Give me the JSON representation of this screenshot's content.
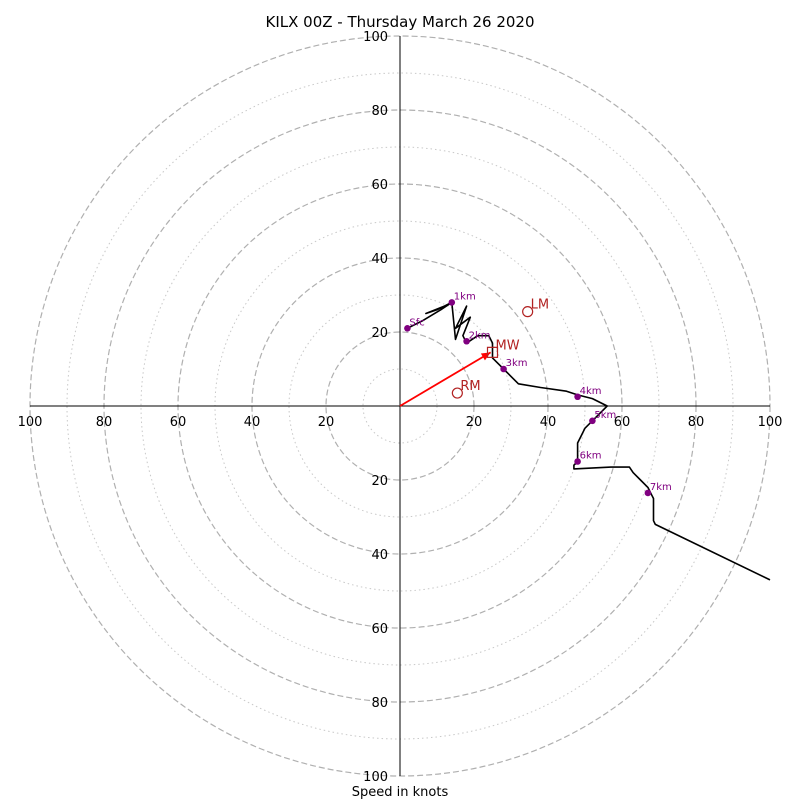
{
  "chart_data": {
    "type": "hodograph",
    "title": "KILX 00Z - Thursday March 26 2020",
    "xlabel": "Speed in knots",
    "range": 100,
    "rings_major": [
      20,
      40,
      60,
      80,
      100
    ],
    "rings_minor": [
      10,
      30,
      50,
      70,
      90
    ],
    "tick_labels": {
      "top": [
        "20",
        "40",
        "60",
        "80",
        "100"
      ],
      "bottom": [
        "20",
        "40",
        "60",
        "80",
        "100"
      ],
      "left": [
        "100",
        "80",
        "60",
        "40",
        "20"
      ],
      "right": [
        "20",
        "40",
        "60",
        "80",
        "100"
      ]
    },
    "grid": true,
    "colors": {
      "trace": "#000000",
      "height_points": "#800080",
      "storm_motion": "#b22222",
      "mean_wind_vector": "#ff0000",
      "grid": "#b0b0b0"
    },
    "trace": [
      [
        2,
        21
      ],
      [
        6,
        23
      ],
      [
        11,
        26
      ],
      [
        14,
        28
      ],
      [
        12,
        27
      ],
      [
        7,
        25
      ],
      [
        10,
        26
      ],
      [
        14,
        28
      ],
      [
        15,
        18
      ],
      [
        18,
        27
      ],
      [
        15,
        21
      ],
      [
        19,
        24
      ],
      [
        17,
        19
      ],
      [
        18,
        17
      ],
      [
        21,
        19
      ],
      [
        24,
        19
      ],
      [
        25,
        17
      ],
      [
        25,
        15
      ],
      [
        25,
        13
      ],
      [
        27,
        11
      ],
      [
        28,
        10
      ],
      [
        30,
        8
      ],
      [
        32,
        6
      ],
      [
        38,
        5
      ],
      [
        45,
        4
      ],
      [
        48,
        3
      ],
      [
        52,
        2
      ],
      [
        56,
        0
      ],
      [
        52,
        -4
      ],
      [
        50,
        -6
      ],
      [
        49,
        -8
      ],
      [
        48,
        -10
      ],
      [
        48,
        -12
      ],
      [
        48,
        -15
      ],
      [
        47,
        -16
      ],
      [
        47,
        -17
      ],
      [
        57,
        -16.5
      ],
      [
        62,
        -16.5
      ],
      [
        63,
        -18
      ],
      [
        65,
        -20
      ],
      [
        67,
        -22
      ],
      [
        68,
        -24
      ],
      [
        68.5,
        -25
      ],
      [
        68.5,
        -28
      ],
      [
        68.5,
        -31
      ],
      [
        69,
        -32
      ],
      [
        100,
        -47
      ]
    ],
    "height_markers": [
      {
        "label": "Sfc",
        "u": 2,
        "v": 21
      },
      {
        "label": "1km",
        "u": 14,
        "v": 28
      },
      {
        "label": "2km",
        "u": 18,
        "v": 17.5
      },
      {
        "label": "3km",
        "u": 28,
        "v": 10
      },
      {
        "label": "4km",
        "u": 48,
        "v": 2.5
      },
      {
        "label": "5km",
        "u": 52,
        "v": -4
      },
      {
        "label": "6km",
        "u": 48,
        "v": -15
      },
      {
        "label": "7km",
        "u": 67,
        "v": -23.5
      }
    ],
    "storm_motions": [
      {
        "label": "RM",
        "u": 15.5,
        "v": 3.5,
        "marker": "circle"
      },
      {
        "label": "LM",
        "u": 34.5,
        "v": 25.5,
        "marker": "circle"
      },
      {
        "label": "MW",
        "u": 25,
        "v": 14.5,
        "marker": "square"
      }
    ],
    "mean_wind_vector": {
      "u": 24.5,
      "v": 14.5
    }
  }
}
